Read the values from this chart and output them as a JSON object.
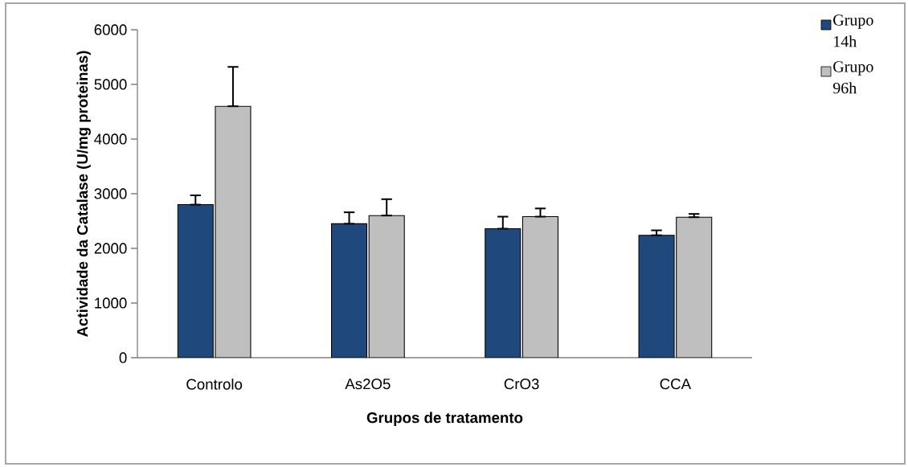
{
  "chart_data": {
    "type": "bar",
    "xlabel": "Grupos de tratamento",
    "ylabel": "Actividade da Catalase (U/mg proteinas)",
    "categories": [
      "Controlo",
      "As2O5",
      "CrO3",
      "CCA"
    ],
    "series": [
      {
        "name": "Grupo 14h",
        "color": "#1f497d",
        "values": [
          2800,
          2450,
          2360,
          2240
        ],
        "errors": [
          [
            2800,
            2970
          ],
          [
            2450,
            2660
          ],
          [
            2360,
            2580
          ],
          [
            2240,
            2330
          ]
        ]
      },
      {
        "name": "Grupo 96h",
        "color": "#bfbfbf",
        "values": [
          4600,
          2600,
          2580,
          2570
        ],
        "errors": [
          [
            4600,
            5320
          ],
          [
            2600,
            2900
          ],
          [
            2580,
            2730
          ],
          [
            2570,
            2630
          ]
        ]
      }
    ],
    "ylim": [
      0,
      6000
    ],
    "yticks": [
      0,
      1000,
      2000,
      3000,
      4000,
      5000,
      6000
    ],
    "grid": false,
    "legend": "top right"
  }
}
